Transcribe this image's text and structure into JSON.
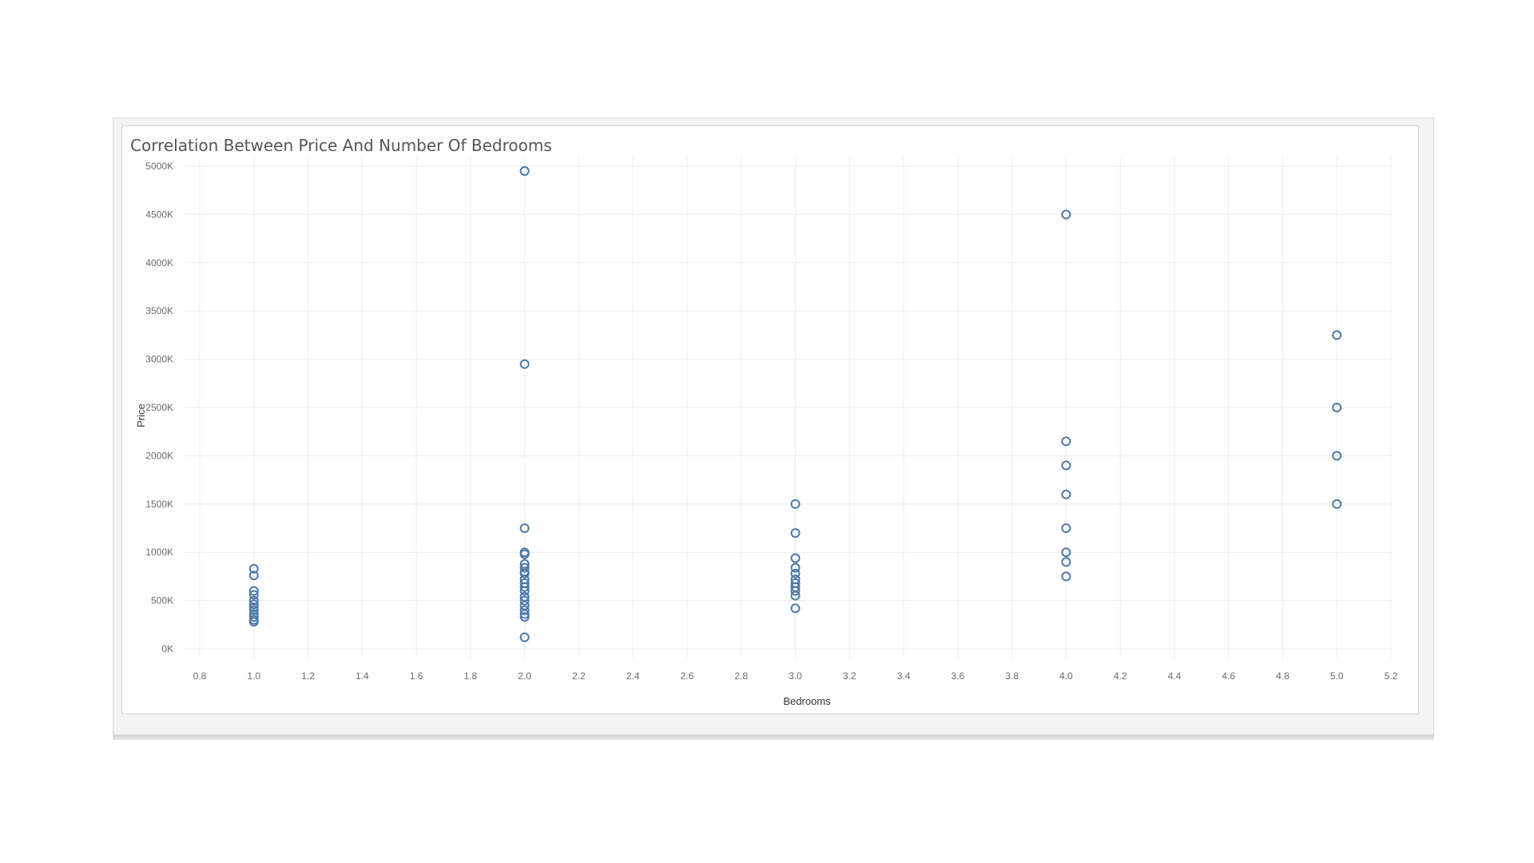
{
  "colors": {
    "point_stroke": "#4e79a7",
    "grid": "#ececec",
    "tick_text": "#6b6b6b",
    "title_text": "#555555"
  },
  "chart_data": {
    "type": "scatter",
    "title": "Correlation Between Price And Number Of Bedrooms",
    "xlabel": "Bedrooms",
    "ylabel": "Price",
    "xlim": [
      0.8,
      5.2
    ],
    "ylim": [
      0,
      5000
    ],
    "xticks": [
      "0.8",
      "1.0",
      "1.2",
      "1.4",
      "1.6",
      "1.8",
      "2.0",
      "2.2",
      "2.4",
      "2.6",
      "2.8",
      "3.0",
      "3.2",
      "3.4",
      "3.6",
      "3.8",
      "4.0",
      "4.2",
      "4.4",
      "4.6",
      "4.8",
      "5.0",
      "5.2"
    ],
    "yticks": [
      "0K",
      "500K",
      "1000K",
      "1500K",
      "2000K",
      "2500K",
      "3000K",
      "3500K",
      "4000K",
      "4500K",
      "5000K"
    ],
    "grid": true,
    "marker": "hollow-circle",
    "series": [
      {
        "points": [
          [
            1,
            280
          ],
          [
            1,
            300
          ],
          [
            1,
            330
          ],
          [
            1,
            360
          ],
          [
            1,
            400
          ],
          [
            1,
            430
          ],
          [
            1,
            460
          ],
          [
            1,
            500
          ],
          [
            1,
            560
          ],
          [
            1,
            600
          ],
          [
            1,
            760
          ],
          [
            1,
            830
          ],
          [
            2,
            120
          ],
          [
            2,
            330
          ],
          [
            2,
            360
          ],
          [
            2,
            400
          ],
          [
            2,
            450
          ],
          [
            2,
            500
          ],
          [
            2,
            540
          ],
          [
            2,
            600
          ],
          [
            2,
            640
          ],
          [
            2,
            680
          ],
          [
            2,
            720
          ],
          [
            2,
            780
          ],
          [
            2,
            800
          ],
          [
            2,
            840
          ],
          [
            2,
            880
          ],
          [
            2,
            980
          ],
          [
            2,
            1000
          ],
          [
            2,
            1250
          ],
          [
            2,
            2950
          ],
          [
            2,
            4950
          ],
          [
            3,
            420
          ],
          [
            3,
            550
          ],
          [
            3,
            600
          ],
          [
            3,
            640
          ],
          [
            3,
            680
          ],
          [
            3,
            720
          ],
          [
            3,
            780
          ],
          [
            3,
            840
          ],
          [
            3,
            940
          ],
          [
            3,
            1200
          ],
          [
            3,
            1500
          ],
          [
            4,
            750
          ],
          [
            4,
            900
          ],
          [
            4,
            1000
          ],
          [
            4,
            1250
          ],
          [
            4,
            1600
          ],
          [
            4,
            1900
          ],
          [
            4,
            2150
          ],
          [
            4,
            4500
          ],
          [
            5,
            1500
          ],
          [
            5,
            2000
          ],
          [
            5,
            2500
          ],
          [
            5,
            3250
          ]
        ]
      }
    ]
  }
}
